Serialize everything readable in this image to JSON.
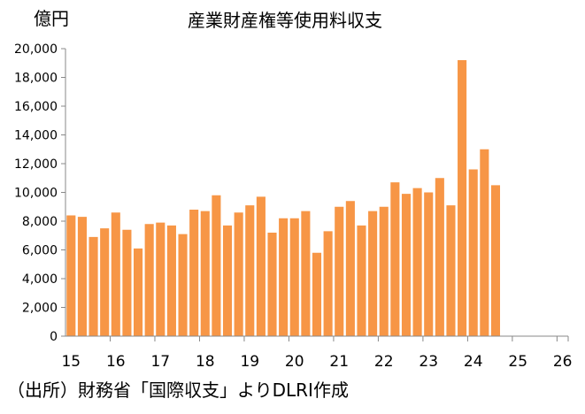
{
  "chart_data": {
    "type": "bar",
    "title": "産業財産権等使用料収支",
    "ylabel": "億円",
    "source": "（出所）財務省「国際収支」よりDLRI作成",
    "ylim": [
      0,
      20000
    ],
    "yticks": [
      0,
      2000,
      4000,
      6000,
      8000,
      10000,
      12000,
      14000,
      16000,
      18000,
      20000
    ],
    "ytick_labels": [
      "0",
      "2,000",
      "4,000",
      "6,000",
      "8,000",
      "10,000",
      "12,000",
      "14,000",
      "16,000",
      "18,000",
      "20,000"
    ],
    "xtick_labels": [
      "15",
      "16",
      "17",
      "18",
      "19",
      "20",
      "21",
      "22",
      "23",
      "24",
      "25",
      "26"
    ],
    "quarters_per_year": 4,
    "bar_color": "#F79646",
    "grid": false,
    "values": [
      8400,
      8300,
      6900,
      7500,
      8600,
      7400,
      6100,
      7800,
      7900,
      7700,
      7100,
      8800,
      8700,
      9800,
      7700,
      8600,
      9100,
      9700,
      7200,
      8200,
      8200,
      8700,
      5800,
      7300,
      9000,
      9400,
      7700,
      8700,
      9000,
      10700,
      9900,
      10300,
      10000,
      11000,
      9100,
      19200,
      11600,
      13000,
      10500
    ]
  }
}
